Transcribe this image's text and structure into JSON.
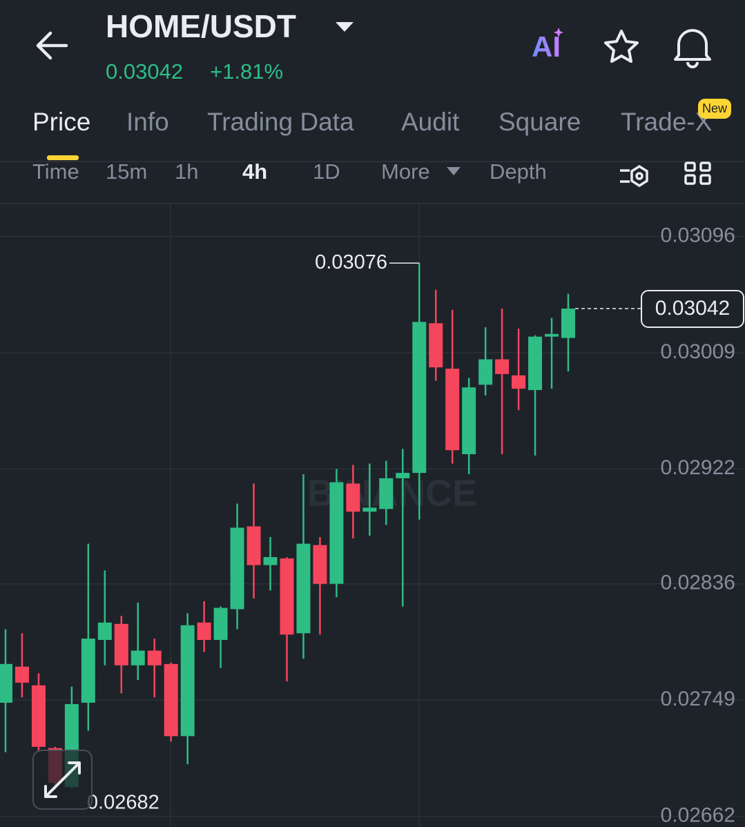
{
  "header": {
    "title": "HOME/USDT",
    "price": "0.03042",
    "change": "+1.81%",
    "ai_label": "AI"
  },
  "tabs": [
    "Price",
    "Info",
    "Trading Data",
    "Audit",
    "Square",
    "Trade-X"
  ],
  "tab_badge": "New",
  "intervals": [
    "Time",
    "15m",
    "1h",
    "4h",
    "1D",
    "More",
    "Depth"
  ],
  "chart_data": {
    "type": "candlestick",
    "watermark": "BINANCE",
    "up_color": "#2ebd85",
    "down_color": "#f6465d",
    "ylim": [
      0.02654,
      0.0312
    ],
    "yticks": [
      0.03096,
      0.03009,
      0.02922,
      0.02836,
      0.02749,
      0.02662
    ],
    "grid": true,
    "max_label": 0.03076,
    "min_label": 0.02682,
    "last_price": 0.03042,
    "open": [
      0.02747,
      0.02774,
      0.0276,
      0.02713,
      0.02684,
      0.02747,
      0.02794,
      0.02806,
      0.02775,
      0.02786,
      0.02776,
      0.02722,
      0.02807,
      0.02794,
      0.02817,
      0.02879,
      0.0285,
      0.02855,
      0.02799,
      0.02865,
      0.02836,
      0.02911,
      0.0289,
      0.02892,
      0.02915,
      0.02919,
      0.03031,
      0.02997,
      0.02933,
      0.02985,
      0.03004,
      0.02992,
      0.02981,
      0.03021,
      0.0302
    ],
    "close": [
      0.02776,
      0.02762,
      0.02714,
      0.02687,
      0.02746,
      0.02795,
      0.02807,
      0.02775,
      0.02786,
      0.02775,
      0.02722,
      0.02805,
      0.02794,
      0.02818,
      0.02878,
      0.0285,
      0.02856,
      0.02798,
      0.02866,
      0.02836,
      0.02912,
      0.0289,
      0.02893,
      0.02915,
      0.02919,
      0.03032,
      0.02998,
      0.02936,
      0.02983,
      0.03004,
      0.02993,
      0.02982,
      0.03021,
      0.03023,
      0.03042
    ],
    "high": [
      0.02802,
      0.02799,
      0.02769,
      0.02714,
      0.02759,
      0.02866,
      0.02846,
      0.02812,
      0.02822,
      0.02795,
      0.02777,
      0.02814,
      0.02823,
      0.02819,
      0.02896,
      0.02911,
      0.02871,
      0.02856,
      0.02918,
      0.02871,
      0.02922,
      0.02925,
      0.02926,
      0.02928,
      0.02937,
      0.03076,
      0.03056,
      0.03041,
      0.0299,
      0.03028,
      0.03042,
      0.03027,
      0.03022,
      0.03035,
      0.03053
    ],
    "low": [
      0.0271,
      0.02751,
      0.0271,
      0.02682,
      0.02683,
      0.02726,
      0.02775,
      0.02754,
      0.02764,
      0.02751,
      0.02718,
      0.02701,
      0.02785,
      0.02773,
      0.02802,
      0.02825,
      0.02831,
      0.02763,
      0.0278,
      0.02798,
      0.02826,
      0.0287,
      0.02872,
      0.0288,
      0.02819,
      0.02884,
      0.02988,
      0.02926,
      0.02918,
      0.02977,
      0.02933,
      0.02966,
      0.02932,
      0.02982,
      0.02995
    ]
  }
}
